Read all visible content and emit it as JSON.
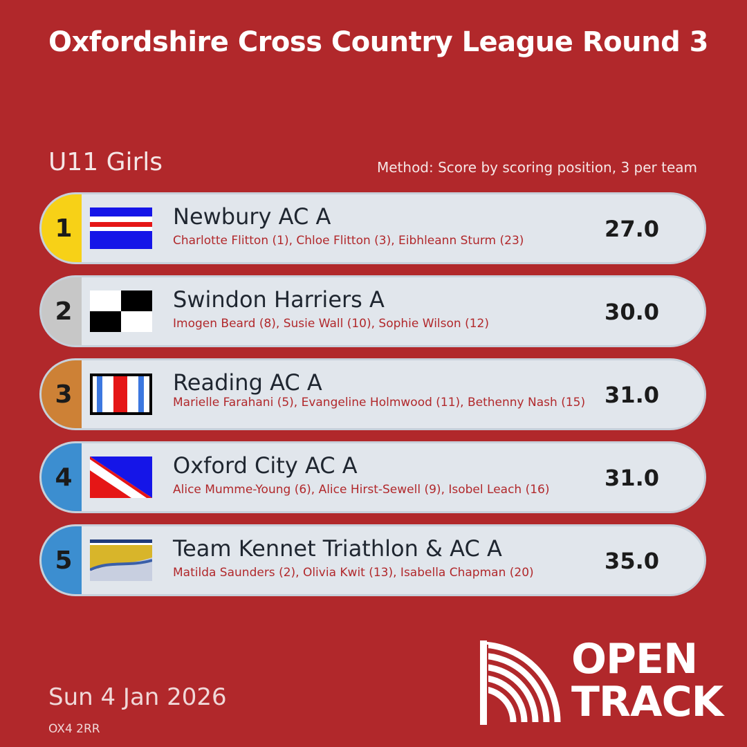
{
  "title": "Oxfordshire Cross Country League Round 3",
  "category": "U11 Girls",
  "method": "Method: Score by scoring position, 3 per team",
  "colors": {
    "background": "#b1282b",
    "gold": "#f7d117",
    "silver": "#c7c7c7",
    "bronze": "#cd8136",
    "blue": "#3c8ed0"
  },
  "results": [
    {
      "rank": "1",
      "team": "Newbury AC A",
      "athletes": "Charlotte Flitton (1), Chloe Flitton (3), Eibhleann Sturm (23)",
      "score": "27.0",
      "flag_icon": "newbury-flag-icon"
    },
    {
      "rank": "2",
      "team": "Swindon Harriers A",
      "athletes": "Imogen Beard (8), Susie Wall (10), Sophie Wilson (12)",
      "score": "30.0",
      "flag_icon": "swindon-flag-icon"
    },
    {
      "rank": "3",
      "team": "Reading AC A",
      "athletes": "Marielle Farahani (5), Evangeline Holmwood (11), Bethenny Nash (15)",
      "score": "31.0",
      "flag_icon": "reading-flag-icon"
    },
    {
      "rank": "4",
      "team": "Oxford City AC A",
      "athletes": "Alice Mumme-Young (6), Alice Hirst-Sewell (9), Isobel Leach (16)",
      "score": "31.0",
      "flag_icon": "oxford-flag-icon"
    },
    {
      "rank": "5",
      "team": "Team Kennet Triathlon & AC A",
      "athletes": "Matilda Saunders (2), Olivia Kwit (13), Isabella Chapman (20)",
      "score": "35.0",
      "flag_icon": "kennet-flag-icon"
    }
  ],
  "date": "Sun 4 Jan 2026",
  "postcode": "OX4 2RR",
  "logo": {
    "line1": "OPEN",
    "line2": "TRACK"
  }
}
